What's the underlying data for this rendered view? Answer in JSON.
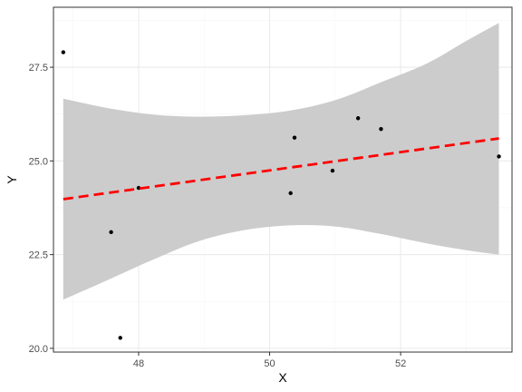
{
  "chart_data": {
    "type": "scatter",
    "title": "",
    "xlabel": "X",
    "ylabel": "Y",
    "xlim": [
      46.7,
      53.7
    ],
    "ylim": [
      19.9,
      29.1
    ],
    "x_ticks": [
      48,
      50,
      52
    ],
    "y_ticks": [
      20.0,
      22.5,
      25.0,
      27.5
    ],
    "x_tick_labels": [
      "48",
      "50",
      "52"
    ],
    "y_tick_labels": [
      "20.0",
      "22.5",
      "25.0",
      "27.5"
    ],
    "grid": true,
    "theme": "black-and-white",
    "points": [
      {
        "x": 46.85,
        "y": 27.9
      },
      {
        "x": 47.58,
        "y": 23.1
      },
      {
        "x": 47.72,
        "y": 20.28
      },
      {
        "x": 48.0,
        "y": 24.28
      },
      {
        "x": 50.32,
        "y": 24.14
      },
      {
        "x": 50.38,
        "y": 25.62
      },
      {
        "x": 50.96,
        "y": 24.74
      },
      {
        "x": 51.35,
        "y": 26.14
      },
      {
        "x": 51.7,
        "y": 25.85
      },
      {
        "x": 53.5,
        "y": 25.12
      }
    ],
    "fit_line": {
      "x": [
        46.85,
        53.5
      ],
      "y": [
        23.98,
        25.6
      ],
      "color": "#ff0000",
      "style": "dashed"
    },
    "confidence_band": {
      "color": "#cccccc",
      "x": [
        46.85,
        47.5,
        48.2,
        48.9,
        49.6,
        50.3,
        51.0,
        51.7,
        52.4,
        53.0,
        53.5
      ],
      "lower": [
        21.3,
        21.8,
        22.35,
        22.85,
        23.15,
        23.28,
        23.25,
        23.05,
        22.8,
        22.62,
        22.5
      ],
      "upper": [
        26.66,
        26.42,
        26.24,
        26.18,
        26.22,
        26.34,
        26.62,
        27.1,
        27.6,
        28.2,
        28.68
      ]
    },
    "colors": {
      "points": "#000000",
      "panel_border": "#333333",
      "grid_major": "#ebebeb",
      "grid_minor": "#f5f5f5"
    }
  }
}
